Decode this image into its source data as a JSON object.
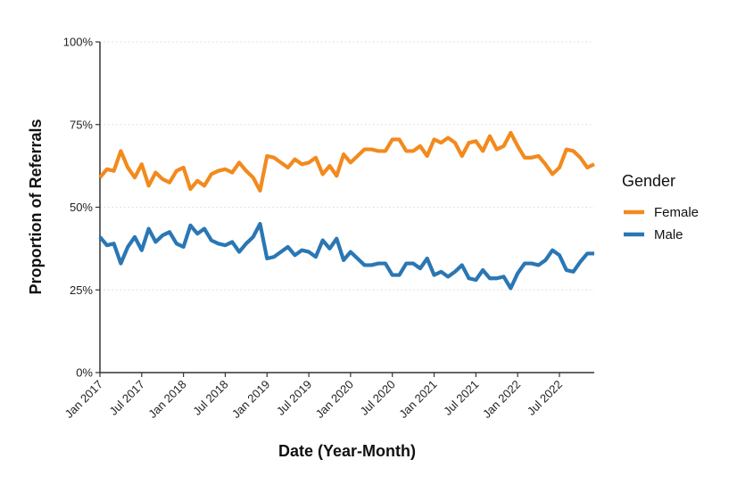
{
  "chart_data": {
    "type": "line",
    "xlabel": "Date (Year-Month)",
    "ylabel": "Proportion of Referrals",
    "x_ticks": [
      "Jan 2017",
      "Jul 2017",
      "Jan 2018",
      "Jul 2018",
      "Jan 2019",
      "Jul 2019",
      "Jan 2020",
      "Jul 2020",
      "Jan 2021",
      "Jul 2021",
      "Jan 2022",
      "Jul 2022"
    ],
    "y_ticks": [
      "0%",
      "25%",
      "50%",
      "75%",
      "100%"
    ],
    "ylim": [
      0,
      100
    ],
    "x_start": "2017-01",
    "x_end": "2022-12",
    "legend_title": "Gender",
    "legend_position": "right",
    "grid": "horizontal-dotted",
    "series": [
      {
        "name": "Female",
        "color": "#f28a1e",
        "values": [
          59,
          61.5,
          61,
          67,
          62,
          59,
          63,
          56.5,
          60.5,
          58.5,
          57.5,
          61,
          62,
          55.5,
          58,
          56.5,
          60,
          61,
          61.5,
          60.5,
          63.5,
          61,
          59,
          55,
          65.5,
          65,
          63.5,
          62,
          64.5,
          63,
          63.5,
          65,
          60,
          62.5,
          59.5,
          66,
          63.5,
          65.5,
          67.5,
          67.5,
          67,
          67,
          70.5,
          70.5,
          67,
          67,
          68.5,
          65.5,
          70.5,
          69.5,
          71,
          69.5,
          65.5,
          69.5,
          70,
          67,
          71.5,
          67.5,
          68.5,
          72.5,
          68.5,
          65,
          65,
          65.5,
          63,
          60,
          62,
          67.5,
          67,
          65,
          62,
          63
        ]
      },
      {
        "name": "Male",
        "color": "#2a77b4",
        "values": [
          41,
          38.5,
          39,
          33,
          38,
          41,
          37,
          43.5,
          39.5,
          41.5,
          42.5,
          39,
          38,
          44.5,
          42,
          43.5,
          40,
          39,
          38.5,
          39.5,
          36.5,
          39,
          41,
          45,
          34.5,
          35,
          36.5,
          38,
          35.5,
          37,
          36.5,
          35,
          40,
          37.5,
          40.5,
          34,
          36.5,
          34.5,
          32.5,
          32.5,
          33,
          33,
          29.5,
          29.5,
          33,
          33,
          31.5,
          34.5,
          29.5,
          30.5,
          29,
          30.5,
          32.5,
          28.5,
          28,
          31,
          28.5,
          28.5,
          29,
          25.5,
          30,
          33,
          33,
          32.5,
          34,
          37,
          35.5,
          31,
          30.5,
          33.5,
          36,
          36
        ]
      }
    ]
  }
}
